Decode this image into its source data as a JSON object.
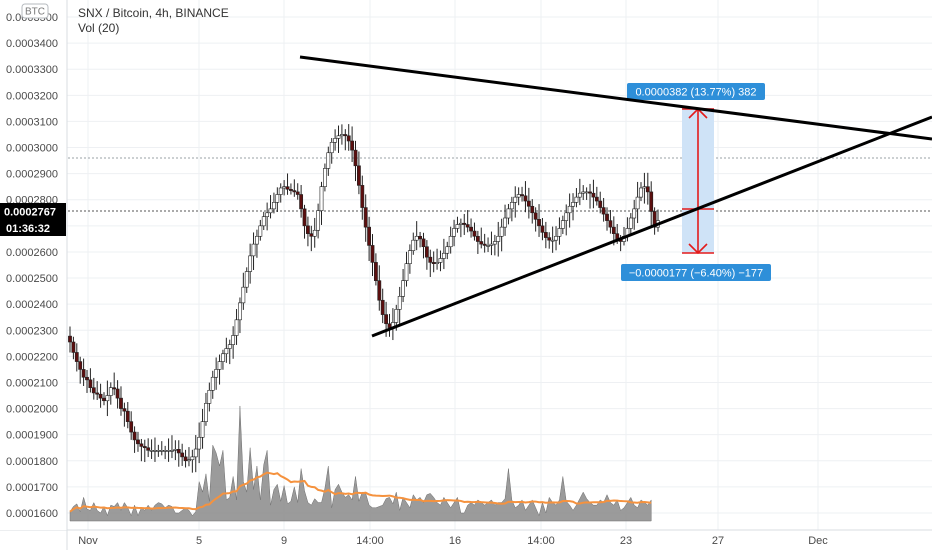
{
  "header": {
    "currency_badge": "BTC",
    "symbol_line": "SNX / Bitcoin, 4h, BINANCE",
    "volume_label": "Vol (20)"
  },
  "price_axis": {
    "ticks": [
      "0.0003500",
      "0.0003400",
      "0.0003300",
      "0.0003200",
      "0.0003100",
      "0.0003000",
      "0.0002900",
      "0.0002800",
      "0.0002700",
      "0.0002600",
      "0.0002500",
      "0.0002400",
      "0.0002300",
      "0.0002200",
      "0.0002100",
      "0.0002000",
      "0.0001900",
      "0.0001800",
      "0.0001700",
      "0.0001600"
    ],
    "last_price": "0.0002767",
    "countdown": "01:36:32"
  },
  "time_axis": {
    "ticks": [
      "Nov",
      "5",
      "9",
      "14:00",
      "16",
      "14:00",
      "23",
      "27",
      "Dec"
    ]
  },
  "measure": {
    "upper_label": "0.0000382 (13.77%) 382",
    "lower_label": "−0.0000177 (−6.40%) −177"
  },
  "colors": {
    "bull": "#ffffff",
    "bear": "#5b0f0f",
    "wick": "#222222",
    "volume_fill": "#8a8a8a",
    "volume_ma": "#f5923e",
    "trendline": "#000000",
    "measure_box": "#cfe3f7",
    "measure_arrow": "#e31b1b",
    "label_blue": "#2e8fd9",
    "last_price_bg": "#000000"
  },
  "chart_data": {
    "type": "candlestick",
    "ylim": [
      0.000159,
      0.000354
    ],
    "interval": "4h",
    "candles_close": [
      0.0002255,
      0.0002215,
      0.000218,
      0.000215,
      0.000212,
      0.000211,
      0.000208,
      0.000206,
      0.0002055,
      0.000204,
      0.000203,
      0.000205,
      0.000208,
      0.0002075,
      0.000204,
      0.0002,
      0.000199,
      0.000195,
      0.000191,
      0.000188,
      0.0001865,
      0.0001855,
      0.000185,
      0.000184,
      0.000184,
      0.000184,
      0.000184,
      0.000184,
      0.000184,
      0.000184,
      0.000184,
      0.0001844,
      0.000183,
      0.0001815,
      0.00018,
      0.0001804,
      0.0001815,
      0.0001845,
      0.000189,
      0.000195,
      0.000202,
      0.000207,
      0.000212,
      0.000215,
      0.000218,
      0.000221,
      0.000223,
      0.0002245,
      0.000228,
      0.000234,
      0.0002405,
      0.0002465,
      0.0002525,
      0.0002585,
      0.000263,
      0.000266,
      0.00027,
      0.0002735,
      0.000275,
      0.0002765,
      0.000279,
      0.000282,
      0.0002845,
      0.000285,
      0.000284,
      0.0002835,
      0.000283,
      0.000282,
      0.0002765,
      0.00027,
      0.000267,
      0.000266,
      0.0002683,
      0.0002758,
      0.000285,
      0.000292,
      0.000298,
      0.000302,
      0.0003035,
      0.0003045,
      0.000305,
      0.0003045,
      0.0003025,
      0.000299,
      0.000293,
      0.0002855,
      0.000277,
      0.0002695,
      0.0002625,
      0.000256,
      0.000249,
      0.0002415,
      0.000236,
      0.0002325,
      0.000231,
      0.000233,
      0.000238,
      0.000243,
      0.000249,
      0.0002555,
      0.0002605,
      0.0002645,
      0.000266,
      0.000265,
      0.000262,
      0.000258,
      0.000256,
      0.0002555,
      0.000256,
      0.0002575,
      0.0002595,
      0.000262,
      0.000266,
      0.000269,
      0.0002705,
      0.000271,
      0.0002705,
      0.0002695,
      0.000268,
      0.000266,
      0.000264,
      0.000263,
      0.0002625,
      0.0002625,
      0.000263,
      0.000264,
      0.000266,
      0.0002695,
      0.000273,
      0.0002765,
      0.000279,
      0.000281,
      0.000282,
      0.0002815,
      0.0002795,
      0.0002775,
      0.000275,
      0.0002725,
      0.00027,
      0.0002675,
      0.0002655,
      0.0002645,
      0.0002645,
      0.000266,
      0.000269,
      0.000272,
      0.000275,
      0.0002775,
      0.000279,
      0.000281,
      0.0002825,
      0.000283,
      0.000283,
      0.0002825,
      0.000281,
      0.0002795,
      0.000277,
      0.0002745,
      0.000272,
      0.0002695,
      0.000267,
      0.000265,
      0.000264,
      0.000266,
      0.000269,
      0.000273,
      0.0002765,
      0.000281,
      0.0002845,
      0.000285,
      0.000283,
      0.0002755,
      0.0002695,
      0.000272
    ],
    "volume": [
      0.0001605,
      0.0001625,
      0.0001635,
      0.0001605,
      0.000166,
      0.0001615,
      0.000161,
      0.000164,
      0.000161,
      0.00016,
      0.0001625,
      0.000159,
      0.000163,
      0.0001625,
      0.000164,
      0.000161,
      0.000164,
      0.000162,
      0.000159,
      0.000163,
      0.000159,
      0.000162,
      0.000161,
      0.000163,
      0.000161,
      0.000163,
      0.000164,
      0.0001635,
      0.000162,
      0.000163,
      0.0001625,
      0.00016,
      0.00016,
      0.000161,
      0.000162,
      0.000161,
      0.000159,
      0.0001605,
      0.000172,
      0.000168,
      0.000175,
      0.0001645,
      0.000186,
      0.000183,
      0.000178,
      0.000184,
      0.000165,
      0.000166,
      0.000174,
      0.000165,
      0.000201,
      0.000172,
      0.000168,
      0.000185,
      0.000169,
      0.000178,
      0.000165,
      0.0001785,
      0.000184,
      0.000163,
      0.000169,
      0.000171,
      0.0001645,
      0.0001705,
      0.0001635,
      0.0001645,
      0.00017,
      0.000164,
      0.000177,
      0.0001685,
      0.000164,
      0.000163,
      0.0001655,
      0.000164,
      0.000164,
      0.0001695,
      0.000178,
      0.000162,
      0.000169,
      0.000171,
      0.000168,
      0.000166,
      0.000167,
      0.000165,
      0.000174,
      0.0001645,
      0.000168,
      0.0001675,
      0.000163,
      0.000162,
      0.000162,
      0.0001625,
      0.000163,
      0.0001655,
      0.000166,
      0.0001635,
      0.000168,
      0.000161,
      0.000166,
      0.000164,
      0.000162,
      0.000167,
      0.000165,
      0.000166,
      0.000164,
      0.000167,
      0.0001675,
      0.000166,
      0.000164,
      0.000163,
      0.000166,
      0.000164,
      0.000162,
      0.000164,
      0.000166,
      0.00016,
      0.00016,
      0.000163,
      0.000164,
      0.000163,
      0.000165,
      0.000164,
      0.000163,
      0.000164,
      0.000165,
      0.000163,
      0.000164,
      0.000164,
      0.0001655,
      0.000177,
      0.000165,
      0.000162,
      0.000163,
      0.000165,
      0.000161,
      0.000163,
      0.000165,
      0.000162,
      0.000159,
      0.000164,
      0.00016,
      0.000166,
      0.000164,
      0.000163,
      0.000165,
      0.000174,
      0.0001645,
      0.000163,
      0.000161,
      0.000163,
      0.0001655,
      0.000168,
      0.0001655,
      0.000164,
      0.000163,
      0.000163,
      0.000165,
      0.000164,
      0.000167,
      0.000164,
      0.000163,
      0.000165,
      0.000161,
      0.000162,
      0.000164,
      0.000166,
      0.000163,
      0.000162,
      0.000165,
      0.000164,
      0.000163,
      0.000165
    ],
    "volume_series_note": "",
    "title": "SNX / Bitcoin, 4h, BINANCE"
  }
}
